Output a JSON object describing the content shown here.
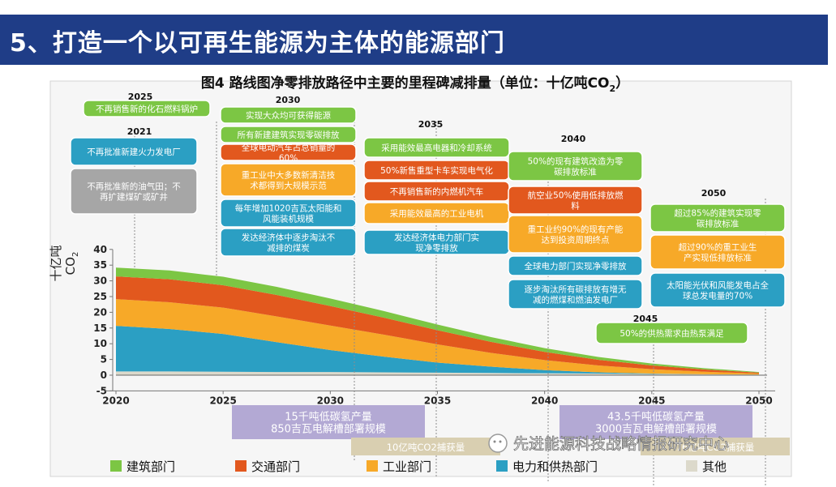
{
  "banner": {
    "title": "5、打造一个以可再生能源为主体的能源部门"
  },
  "colors": {
    "green": "#7cc644",
    "orange": "#e2581e",
    "amber": "#f7a928",
    "blue": "#2b9fc3",
    "gray": "#a6a6a6",
    "stone": "#dcd9cb",
    "lavender": "#b3a9d4",
    "sand": "#d9cfb1"
  },
  "chart_data": {
    "type": "area",
    "title": "图4 路线图净零排放路径中主要的里程碑减排量（单位：十亿吨CO",
    "title_sub": "2",
    "title_close": "）",
    "ylabel": "十亿吨",
    "ylabel_unit": "CO",
    "ylabel_unit_sub": "2",
    "y_ticks": [
      "-5",
      "0",
      "5",
      "10",
      "15",
      "20",
      "25",
      "30",
      "35",
      "40"
    ],
    "x_ticks": [
      "2020",
      "2025",
      "2030",
      "2035",
      "2040",
      "2045",
      "2050"
    ],
    "ylim": [
      -5,
      40
    ],
    "xlim": [
      2020,
      2050
    ],
    "x": [
      2020,
      2022.5,
      2025,
      2027.5,
      2030,
      2032.5,
      2035,
      2037.5,
      2040,
      2042.5,
      2045,
      2047.5,
      2050
    ],
    "series": [
      {
        "name": "其他",
        "color": "#dcd9cb",
        "values": [
          1.2,
          1.2,
          1.1,
          1.0,
          1.0,
          0.9,
          0.8,
          0.7,
          0.6,
          0.5,
          0.4,
          0.3,
          0.2
        ]
      },
      {
        "name": "电力和供热部门",
        "color": "#2b9fc3",
        "values": [
          14.5,
          13.5,
          12.0,
          9.5,
          7.0,
          5.0,
          3.2,
          2.0,
          1.0,
          0.4,
          0.1,
          0.0,
          0.0
        ]
      },
      {
        "name": "工业部门",
        "color": "#f7a928",
        "values": [
          8.5,
          8.5,
          8.4,
          8.2,
          7.8,
          7.0,
          5.8,
          4.4,
          3.2,
          2.2,
          1.4,
          0.8,
          0.3
        ]
      },
      {
        "name": "交通部门",
        "color": "#e2581e",
        "values": [
          7.2,
          7.3,
          7.1,
          6.8,
          6.2,
          5.4,
          4.5,
          3.5,
          2.6,
          1.8,
          1.2,
          0.7,
          0.3
        ]
      },
      {
        "name": "建筑部门",
        "color": "#7cc644",
        "values": [
          2.8,
          2.8,
          2.7,
          2.6,
          2.4,
          2.1,
          1.8,
          1.5,
          1.2,
          0.9,
          0.6,
          0.4,
          0.2
        ]
      }
    ],
    "legend": [
      {
        "label": "建筑部门",
        "color": "#7cc644"
      },
      {
        "label": "交通部门",
        "color": "#e2581e"
      },
      {
        "label": "工业部门",
        "color": "#f7a928"
      },
      {
        "label": "电力和供热部门",
        "color": "#2b9fc3"
      },
      {
        "label": "其他",
        "color": "#dcd9cb"
      }
    ],
    "annotations": {
      "years": [
        {
          "label": "2025"
        },
        {
          "label": "2021"
        },
        {
          "label": "2030"
        },
        {
          "label": "2035"
        },
        {
          "label": "2040"
        },
        {
          "label": "2050"
        },
        {
          "label": "2045"
        }
      ],
      "boxes": [
        {
          "text": "不再销售新的化石燃料锅炉",
          "color": "green"
        },
        {
          "text": "不再批准新建火力发电厂",
          "color": "blue"
        },
        {
          "text": "不再批准新的油气田；不\n再扩建煤矿或矿井",
          "color": "gray"
        },
        {
          "text": "实现大众均可获得能源",
          "color": "green"
        },
        {
          "text": "所有新建建筑实现零碳排放",
          "color": "green"
        },
        {
          "text": "全球电动汽车占总销量的\n60%",
          "color": "orange"
        },
        {
          "text": "重工业中大多数新清洁技\n术都得到大规模示范",
          "color": "amber"
        },
        {
          "text": "每年增加1020吉瓦太阳能和\n风能装机规模",
          "color": "blue"
        },
        {
          "text": "发达经济体中逐步淘汰不\n减排的煤炭",
          "color": "blue"
        },
        {
          "text": "采用能效最高电器和冷却系统",
          "color": "green"
        },
        {
          "text": "50%新售重型卡车实现电气化",
          "color": "orange"
        },
        {
          "text": "不再销售新的内燃机汽车",
          "color": "orange"
        },
        {
          "text": "采用能效最高的工业电机",
          "color": "amber"
        },
        {
          "text": "发达经济体电力部门实\n现净零排放",
          "color": "blue"
        },
        {
          "text": "50%的现有建筑改造为零\n碳排放标准",
          "color": "green"
        },
        {
          "text": "航空业50%使用低排放燃\n料",
          "color": "orange"
        },
        {
          "text": "重工业约90%的现有产能\n达到投资周期终点",
          "color": "amber"
        },
        {
          "text": "全球电力部门实现净零排放",
          "color": "blue"
        },
        {
          "text": "逐步淘汰所有碳排放有增无\n减的燃煤和燃油发电厂",
          "color": "blue"
        },
        {
          "text": "超过85%的建筑实现零\n碳排放标准",
          "color": "green"
        },
        {
          "text": "超过90%的重工业生\n产实现低排放标准",
          "color": "amber"
        },
        {
          "text": "太阳能光伏和风能发电占全\n球总发电量的70%",
          "color": "blue"
        },
        {
          "text": "50%的供热需求由热泵满足",
          "color": "green"
        }
      ],
      "bottom": [
        {
          "text": "15千吨低碳氢产量\n850吉瓦电解槽部署规模",
          "color": "lavender"
        },
        {
          "text": "43.5千吨低碳氢产量\n3000吉瓦电解槽部署规模",
          "color": "lavender"
        },
        {
          "text": "10亿吨CO2捕获量",
          "color": "sand"
        },
        {
          "text": "76亿吨CO2捕获量",
          "color": "sand"
        }
      ]
    }
  },
  "watermark": {
    "text": "先进能源科技战略情报研究中心"
  }
}
